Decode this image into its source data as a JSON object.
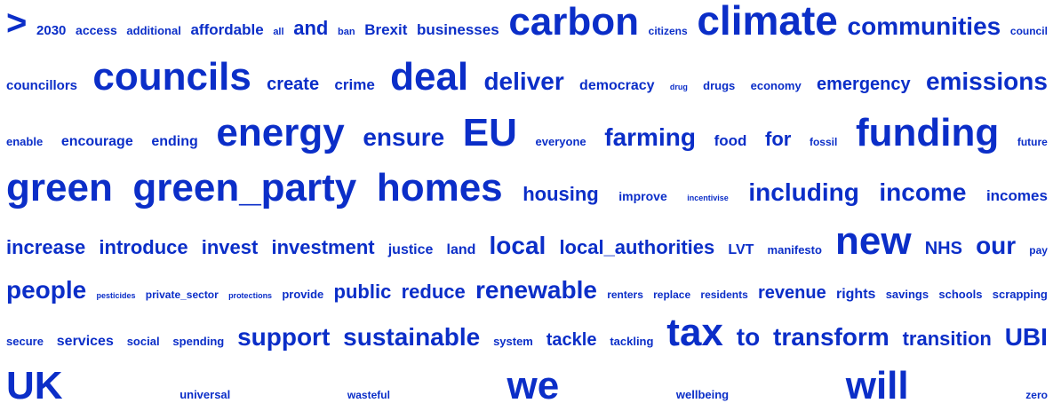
{
  "word_color": "#0b2ec8",
  "cloud": {
    "lines": [
      [
        {
          "text": ">",
          "size": 40
        },
        {
          "text": "2030",
          "size": 15
        },
        {
          "text": "access",
          "size": 14
        },
        {
          "text": "additional",
          "size": 13
        },
        {
          "text": "affordable",
          "size": 17
        },
        {
          "text": "all",
          "size": 11
        },
        {
          "text": "and",
          "size": 22
        },
        {
          "text": "ban",
          "size": 11
        },
        {
          "text": "Brexit",
          "size": 17
        },
        {
          "text": "businesses",
          "size": 17
        },
        {
          "text": "carbon",
          "size": 44
        },
        {
          "text": "citizens",
          "size": 12
        },
        {
          "text": "climate",
          "size": 46
        },
        {
          "text": "communities",
          "size": 28
        },
        {
          "text": "council",
          "size": 12
        }
      ],
      [
        {
          "text": "councillors",
          "size": 15
        },
        {
          "text": "councils",
          "size": 44
        },
        {
          "text": "create",
          "size": 20
        },
        {
          "text": "crime",
          "size": 17
        },
        {
          "text": "deal",
          "size": 44
        },
        {
          "text": "deliver",
          "size": 28
        },
        {
          "text": "democracy",
          "size": 16
        },
        {
          "text": "drug",
          "size": 9
        },
        {
          "text": "drugs",
          "size": 13
        },
        {
          "text": "economy",
          "size": 13
        },
        {
          "text": "emergency",
          "size": 20
        },
        {
          "text": "emissions",
          "size": 28
        }
      ],
      [
        {
          "text": "enable",
          "size": 13
        },
        {
          "text": "encourage",
          "size": 16
        },
        {
          "text": "ending",
          "size": 16
        },
        {
          "text": "energy",
          "size": 44
        },
        {
          "text": "ensure",
          "size": 28
        },
        {
          "text": "EU",
          "size": 44
        },
        {
          "text": "everyone",
          "size": 13
        },
        {
          "text": "farming",
          "size": 28
        },
        {
          "text": "food",
          "size": 17
        },
        {
          "text": "for",
          "size": 22
        },
        {
          "text": "fossil",
          "size": 12
        },
        {
          "text": "funding",
          "size": 44
        },
        {
          "text": "future",
          "size": 12
        }
      ],
      [
        {
          "text": "green",
          "size": 44
        },
        {
          "text": "green_party",
          "size": 44
        },
        {
          "text": "homes",
          "size": 44
        },
        {
          "text": "housing",
          "size": 22
        },
        {
          "text": "improve",
          "size": 14
        },
        {
          "text": "incentivise",
          "size": 9
        },
        {
          "text": "including",
          "size": 28
        },
        {
          "text": "income",
          "size": 28
        },
        {
          "text": "incomes",
          "size": 17
        }
      ],
      [
        {
          "text": "increase",
          "size": 22
        },
        {
          "text": "introduce",
          "size": 22
        },
        {
          "text": "invest",
          "size": 22
        },
        {
          "text": "investment",
          "size": 22
        },
        {
          "text": "justice",
          "size": 16
        },
        {
          "text": "land",
          "size": 16
        },
        {
          "text": "local",
          "size": 28
        },
        {
          "text": "local_authorities",
          "size": 22
        },
        {
          "text": "LVT",
          "size": 16
        },
        {
          "text": "manifesto",
          "size": 13
        },
        {
          "text": "new",
          "size": 44
        },
        {
          "text": "NHS",
          "size": 20
        },
        {
          "text": "our",
          "size": 28
        },
        {
          "text": "pay",
          "size": 12
        }
      ],
      [
        {
          "text": "people",
          "size": 28
        },
        {
          "text": "pesticides",
          "size": 9
        },
        {
          "text": "private_sector",
          "size": 12
        },
        {
          "text": "protections",
          "size": 9
        },
        {
          "text": "provide",
          "size": 13
        },
        {
          "text": "public",
          "size": 22
        },
        {
          "text": "reduce",
          "size": 22
        },
        {
          "text": "renewable",
          "size": 28
        },
        {
          "text": "renters",
          "size": 12
        },
        {
          "text": "replace",
          "size": 12
        },
        {
          "text": "residents",
          "size": 12
        },
        {
          "text": "revenue",
          "size": 20
        },
        {
          "text": "rights",
          "size": 16
        },
        {
          "text": "savings",
          "size": 13
        },
        {
          "text": "schools",
          "size": 13
        },
        {
          "text": "scrapping",
          "size": 13
        }
      ],
      [
        {
          "text": "secure",
          "size": 13
        },
        {
          "text": "services",
          "size": 16
        },
        {
          "text": "social",
          "size": 13
        },
        {
          "text": "spending",
          "size": 13
        },
        {
          "text": "support",
          "size": 28
        },
        {
          "text": "sustainable",
          "size": 28
        },
        {
          "text": "system",
          "size": 13
        },
        {
          "text": "tackle",
          "size": 20
        },
        {
          "text": "tackling",
          "size": 13
        },
        {
          "text": "tax",
          "size": 44
        },
        {
          "text": "to",
          "size": 28
        },
        {
          "text": "transform",
          "size": 28
        },
        {
          "text": "transition",
          "size": 22
        },
        {
          "text": "UBI",
          "size": 28
        }
      ],
      [
        {
          "text": "UK",
          "size": 44
        },
        {
          "text": "universal",
          "size": 13
        },
        {
          "text": "wasteful",
          "size": 12
        },
        {
          "text": "we",
          "size": 44
        },
        {
          "text": "wellbeing",
          "size": 13
        },
        {
          "text": "will",
          "size": 44
        },
        {
          "text": "zero",
          "size": 12
        }
      ]
    ]
  }
}
